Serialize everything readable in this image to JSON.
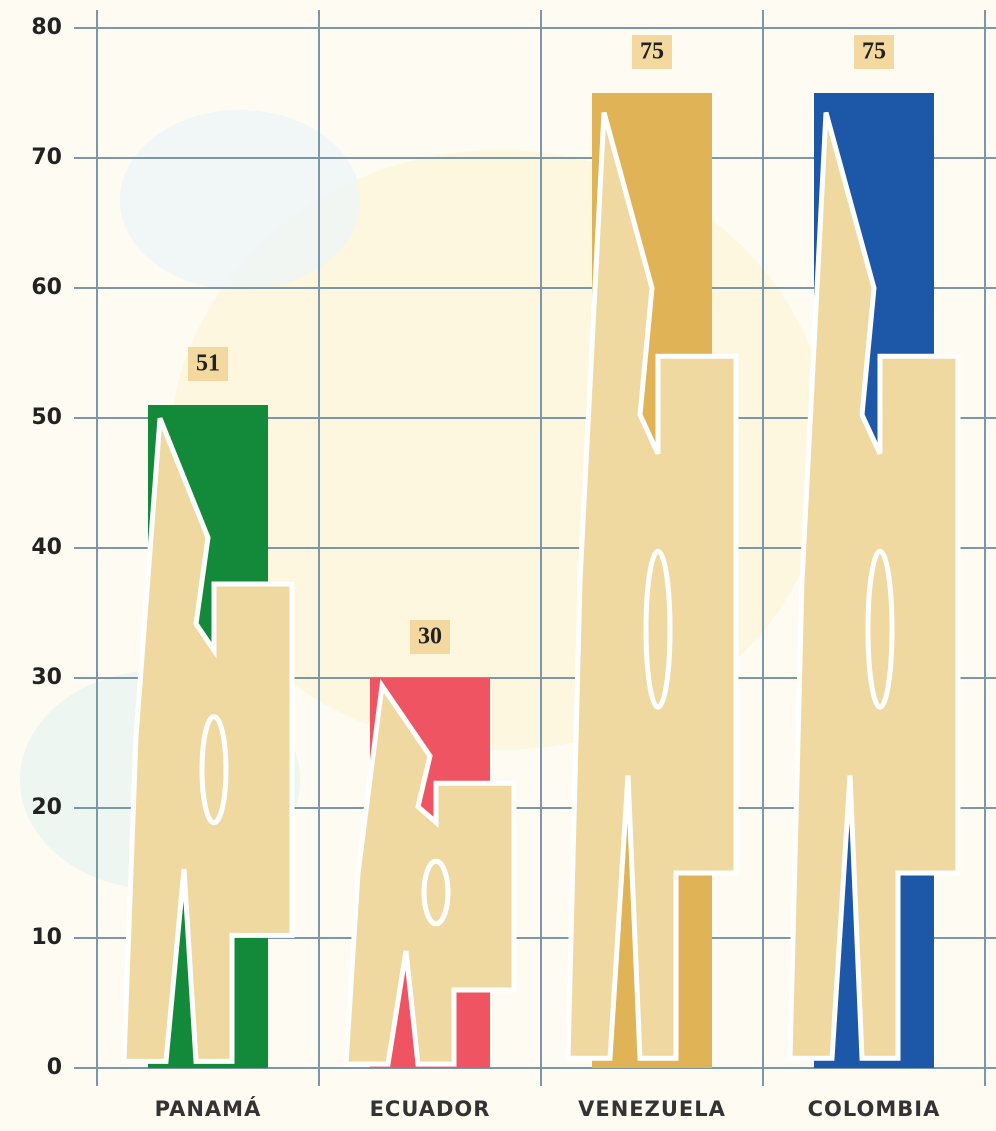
{
  "chart_data": {
    "type": "bar",
    "categories": [
      "PANAMÁ",
      "ECUADOR",
      "VENEZUELA",
      "COLOMBIA"
    ],
    "values": [
      51,
      30,
      75,
      75
    ],
    "colors": [
      "#138a3a",
      "#ee5461",
      "#dfb356",
      "#1d57a8"
    ],
    "ylim": [
      0,
      80
    ],
    "yticks": [
      0,
      10,
      20,
      30,
      40,
      50,
      60,
      70,
      80
    ],
    "grid": true
  }
}
